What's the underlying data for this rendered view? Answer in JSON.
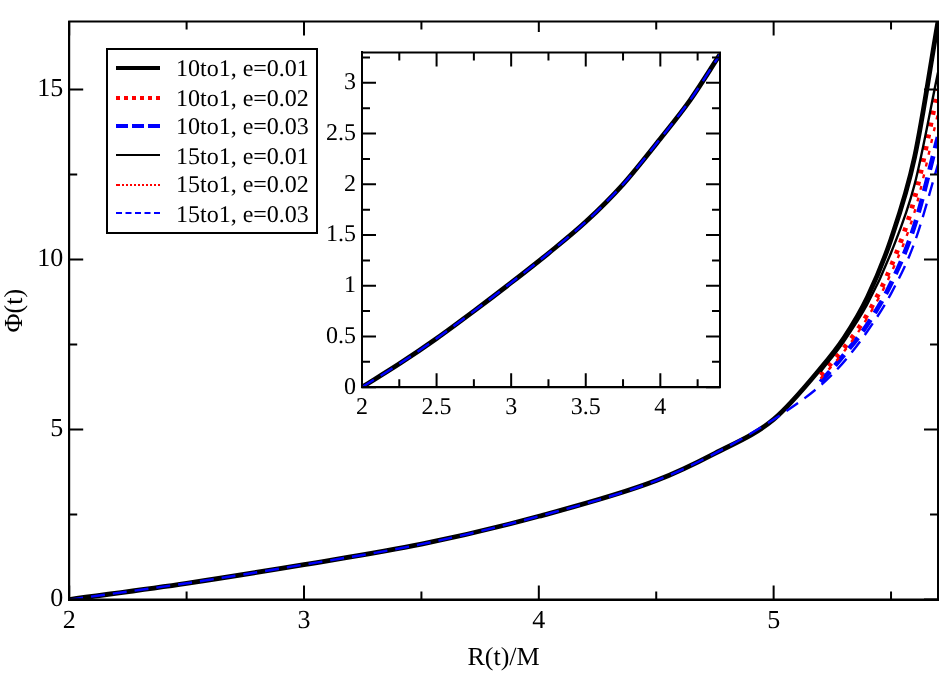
{
  "chart_data": [
    {
      "type": "line",
      "xlabel": "R(t)/M",
      "ylabel": "Φ(t)",
      "legend": "top left",
      "xlim": [
        2,
        5.7
      ],
      "ylim": [
        0,
        17
      ],
      "xticks": [
        2,
        {
          "value": 2.5,
          "label": null
        },
        3,
        {
          "value": 3.5,
          "label": null
        },
        4,
        {
          "value": 4.5,
          "label": null
        },
        5,
        {
          "value": 5.5,
          "label": null
        }
      ],
      "yticks": [
        0,
        {
          "value": 2.5,
          "label": null
        },
        5,
        {
          "value": 7.5,
          "label": null
        },
        10,
        {
          "value": 12.5,
          "label": null
        },
        15
      ],
      "x": [
        2,
        2.5,
        3,
        3.5,
        4,
        4.5,
        4.75,
        5,
        5.2,
        5.3,
        5.4,
        5.5,
        5.6,
        5.7
      ],
      "series": [
        {
          "name": "10to1, e=0.01",
          "color": "#000000",
          "line_style": "solid",
          "values": [
            0,
            0.48,
            1.03,
            1.63,
            2.45,
            3.5,
            4.3,
            5.3,
            6.8,
            7.7,
            8.9,
            10.6,
            13.0,
            17.0
          ]
        },
        {
          "name": "10to1, e=0.02",
          "color": "#ff0000",
          "line_style": "dotted",
          "values": [
            null,
            null,
            null,
            null,
            null,
            null,
            null,
            null,
            6.6,
            7.4,
            8.4,
            9.8,
            11.8,
            15.0
          ]
        },
        {
          "name": "10to1, e=0.03",
          "color": "#0000ff",
          "line_style": "dashed",
          "values": [
            null,
            null,
            null,
            null,
            null,
            null,
            null,
            null,
            6.4,
            7.2,
            8.1,
            9.3,
            11.0,
            13.6
          ]
        },
        {
          "name": "15to1, e=0.01",
          "color": "#000000",
          "line_style": "solid",
          "values": [
            null,
            null,
            null,
            null,
            null,
            null,
            null,
            null,
            6.7,
            7.6,
            8.7,
            10.2,
            12.2,
            15.5
          ]
        },
        {
          "name": "15to1, e=0.02",
          "color": "#ff0000",
          "line_style": "dotted",
          "values": [
            null,
            null,
            null,
            null,
            null,
            null,
            null,
            null,
            6.5,
            7.3,
            8.3,
            9.6,
            11.4,
            14.3
          ]
        },
        {
          "name": "15to1, e=0.03",
          "color": "#0000ff",
          "line_style": "dashed",
          "values": [
            0,
            0.48,
            1.03,
            1.63,
            2.45,
            3.5,
            4.3,
            5.3,
            6.3,
            7.0,
            7.9,
            9.0,
            10.5,
            12.8
          ]
        }
      ]
    },
    {
      "type": "line",
      "xlim": [
        2,
        4.4
      ],
      "ylim": [
        0,
        3.3
      ],
      "xticks": [
        2,
        {
          "value": 2.25,
          "label": null
        },
        2.5,
        {
          "value": 2.75,
          "label": null
        },
        3,
        {
          "value": 3.25,
          "label": null
        },
        3.5,
        {
          "value": 3.75,
          "label": null
        },
        4,
        {
          "value": 4.25,
          "label": null
        }
      ],
      "yticks": [
        0,
        {
          "value": 0.25,
          "label": null
        },
        0.5,
        {
          "value": 0.75,
          "label": null
        },
        1,
        {
          "value": 1.25,
          "label": null
        },
        1.5,
        {
          "value": 1.75,
          "label": null
        },
        2,
        {
          "value": 2.25,
          "label": null
        },
        2.5,
        {
          "value": 2.75,
          "label": null
        },
        3,
        {
          "value": 3.25,
          "label": null
        }
      ],
      "x": [
        2,
        2.25,
        2.5,
        2.75,
        3,
        3.25,
        3.5,
        3.75,
        4,
        4.2,
        4.4
      ],
      "series": [
        {
          "color": "#000000",
          "line_style": "solid",
          "values": [
            0,
            0.23,
            0.48,
            0.75,
            1.03,
            1.32,
            1.63,
            2.0,
            2.45,
            2.83,
            3.28
          ]
        },
        {
          "color": "#0000ff",
          "line_style": "dashed",
          "values": [
            0,
            0.23,
            0.48,
            0.75,
            1.03,
            1.32,
            1.63,
            2.0,
            2.45,
            2.83,
            3.28
          ]
        }
      ]
    }
  ]
}
